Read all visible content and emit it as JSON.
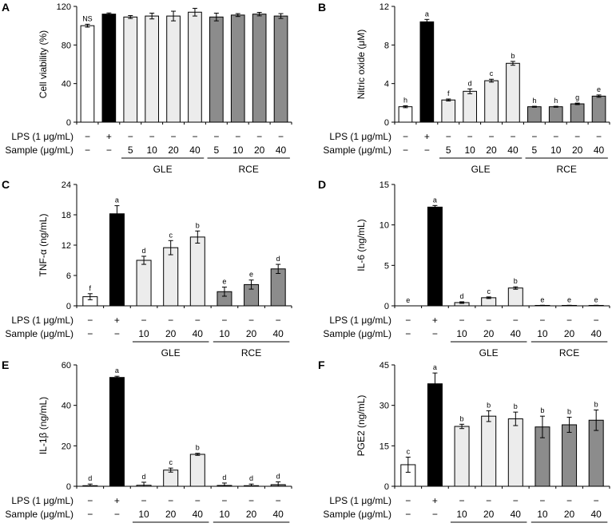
{
  "colors": {
    "control": "#ffffff",
    "lps": "#000000",
    "GLE": "#ececec",
    "RCE": "#8c8c8c",
    "stroke": "#000000"
  },
  "conditions": {
    "row_labels": [
      "LPS (1 μg/mL)",
      "Sample (μg/mL)"
    ],
    "groups": [
      "GLE",
      "RCE"
    ]
  },
  "chart_data": [
    {
      "panel": "A",
      "type": "bar",
      "ylabel": "Cell viability (%)",
      "ylim": [
        0,
        120
      ],
      "yticks": [
        0,
        40,
        80,
        120
      ],
      "categories": [
        "Control",
        "LPS",
        "GLE 5",
        "GLE 10",
        "GLE 20",
        "GLE 40",
        "RCE 5",
        "RCE 10",
        "RCE 20",
        "RCE 40"
      ],
      "groups": [
        "control",
        "lps",
        "GLE",
        "GLE",
        "GLE",
        "GLE",
        "RCE",
        "RCE",
        "RCE",
        "RCE"
      ],
      "values": [
        100,
        112,
        109,
        110,
        110,
        114,
        109,
        111,
        112,
        110
      ],
      "errors": [
        1.5,
        1.2,
        1.5,
        3,
        5,
        4,
        4,
        1.5,
        1.8,
        2.5
      ],
      "sig": [
        "NS",
        "",
        "",
        "",
        "",
        "",
        "",
        "",
        "",
        ""
      ],
      "lps_row": [
        "−",
        "+",
        "−",
        "−",
        "−",
        "−",
        "−",
        "−",
        "−",
        "−"
      ],
      "sample_row": [
        "−",
        "−",
        "5",
        "10",
        "20",
        "40",
        "5",
        "10",
        "20",
        "40"
      ]
    },
    {
      "panel": "B",
      "type": "bar",
      "ylabel": "Nitric oxide (μM)",
      "ylim": [
        0,
        12
      ],
      "yticks": [
        0,
        4,
        8,
        12
      ],
      "categories": [
        "Control",
        "LPS",
        "GLE 5",
        "GLE 10",
        "GLE 20",
        "GLE 40",
        "RCE 5",
        "RCE 10",
        "RCE 20",
        "RCE 40"
      ],
      "groups": [
        "control",
        "lps",
        "GLE",
        "GLE",
        "GLE",
        "GLE",
        "RCE",
        "RCE",
        "RCE",
        "RCE"
      ],
      "values": [
        1.6,
        10.4,
        2.3,
        3.2,
        4.3,
        6.1,
        1.6,
        1.6,
        1.9,
        2.7
      ],
      "errors": [
        0.1,
        0.25,
        0.1,
        0.25,
        0.15,
        0.2,
        0.05,
        0.05,
        0.08,
        0.12
      ],
      "sig": [
        "h",
        "a",
        "f",
        "d",
        "c",
        "b",
        "h",
        "h",
        "g",
        "e"
      ],
      "lps_row": [
        "−",
        "+",
        "−",
        "−",
        "−",
        "−",
        "−",
        "−",
        "−",
        "−"
      ],
      "sample_row": [
        "−",
        "−",
        "5",
        "10",
        "20",
        "40",
        "5",
        "10",
        "20",
        "40"
      ]
    },
    {
      "panel": "C",
      "type": "bar",
      "ylabel": "TNF-α (ng/mL)",
      "ylim": [
        0,
        24
      ],
      "yticks": [
        0,
        6,
        12,
        18,
        24
      ],
      "categories": [
        "Control",
        "LPS",
        "GLE 10",
        "GLE 20",
        "GLE 40",
        "RCE 10",
        "RCE 20",
        "RCE 40"
      ],
      "groups": [
        "control",
        "lps",
        "GLE",
        "GLE",
        "GLE",
        "RCE",
        "RCE",
        "RCE"
      ],
      "values": [
        1.8,
        18.2,
        9.0,
        11.5,
        13.6,
        2.8,
        4.2,
        7.3
      ],
      "errors": [
        0.6,
        1.6,
        0.8,
        1.4,
        1.2,
        0.9,
        0.9,
        0.9
      ],
      "sig": [
        "f",
        "a",
        "d",
        "c",
        "b",
        "e",
        "e",
        "d"
      ],
      "lps_row": [
        "−",
        "+",
        "−",
        "−",
        "−",
        "−",
        "−",
        "−"
      ],
      "sample_row": [
        "−",
        "−",
        "10",
        "20",
        "40",
        "10",
        "20",
        "40"
      ]
    },
    {
      "panel": "D",
      "type": "bar",
      "ylabel": "IL-6 (ng/mL)",
      "ylim": [
        0,
        15
      ],
      "yticks": [
        0,
        5,
        10,
        15
      ],
      "categories": [
        "Control",
        "LPS",
        "GLE 10",
        "GLE 20",
        "GLE 40",
        "RCE 10",
        "RCE 20",
        "RCE 40"
      ],
      "groups": [
        "control",
        "lps",
        "GLE",
        "GLE",
        "GLE",
        "RCE",
        "RCE",
        "RCE"
      ],
      "values": [
        0,
        12.2,
        0.4,
        1.0,
        2.2,
        0.05,
        0.05,
        0.05
      ],
      "errors": [
        0,
        0.2,
        0.1,
        0.1,
        0.15,
        0.02,
        0.02,
        0.02
      ],
      "sig": [
        "e",
        "a",
        "d",
        "c",
        "b",
        "e",
        "e",
        "e"
      ],
      "lps_row": [
        "−",
        "+",
        "−",
        "−",
        "−",
        "−",
        "−",
        "−"
      ],
      "sample_row": [
        "−",
        "−",
        "10",
        "20",
        "40",
        "10",
        "20",
        "40"
      ]
    },
    {
      "panel": "E",
      "type": "bar",
      "ylabel": "IL-1β (ng/mL)",
      "ylim": [
        0,
        60
      ],
      "yticks": [
        0,
        20,
        40,
        60
      ],
      "categories": [
        "Control",
        "LPS",
        "GLE 10",
        "GLE 20",
        "GLE 40",
        "RCE 10",
        "RCE 20",
        "RCE 40"
      ],
      "groups": [
        "control",
        "lps",
        "GLE",
        "GLE",
        "GLE",
        "RCE",
        "RCE",
        "RCE"
      ],
      "values": [
        0.3,
        53.8,
        0.5,
        8.0,
        15.8,
        0.4,
        0.3,
        0.8
      ],
      "errors": [
        0.8,
        0.6,
        1.5,
        1.0,
        0.5,
        1.2,
        0.8,
        1.4
      ],
      "sig": [
        "d",
        "a",
        "d",
        "c",
        "b",
        "d",
        "d",
        "d"
      ],
      "lps_row": [
        "−",
        "+",
        "−",
        "−",
        "−",
        "−",
        "−",
        "−"
      ],
      "sample_row": [
        "−",
        "−",
        "10",
        "20",
        "40",
        "10",
        "20",
        "40"
      ]
    },
    {
      "panel": "F",
      "type": "bar",
      "ylabel": "PGE2 (ng/mL)",
      "ylim": [
        0,
        45
      ],
      "yticks": [
        0,
        15,
        30,
        45
      ],
      "categories": [
        "Control",
        "LPS",
        "GLE 10",
        "GLE 20",
        "GLE 40",
        "RCE 10",
        "RCE 20",
        "RCE 40"
      ],
      "groups": [
        "control",
        "lps",
        "GLE",
        "GLE",
        "GLE",
        "RCE",
        "RCE",
        "RCE"
      ],
      "values": [
        8.0,
        38.0,
        22.2,
        26.0,
        25.0,
        22.0,
        22.8,
        24.5
      ],
      "errors": [
        2.8,
        4.0,
        0.8,
        2.0,
        2.5,
        4.0,
        2.8,
        3.8
      ],
      "sig": [
        "c",
        "a",
        "b",
        "b",
        "b",
        "b",
        "b",
        "b"
      ],
      "lps_row": [
        "−",
        "+",
        "−",
        "−",
        "−",
        "−",
        "−",
        "−"
      ],
      "sample_row": [
        "−",
        "−",
        "10",
        "20",
        "40",
        "10",
        "20",
        "40"
      ]
    }
  ]
}
